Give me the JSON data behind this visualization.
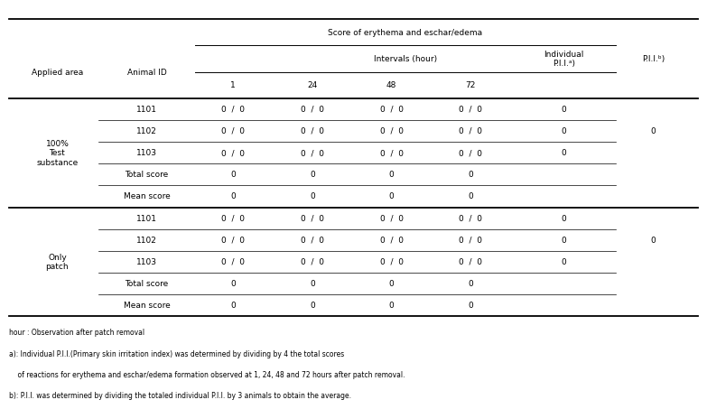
{
  "col_header_score": "Score of erythema and eschar/edema",
  "col_header_intervals": "Intervals (hour)",
  "col_applied": "Applied area",
  "col_animal": "Animal ID",
  "col_individual": "Individual\nP.I.I.ᵃ)",
  "col_pii": "P.I.I.ᵇ)",
  "col_1": "1",
  "col_24": "24",
  "col_48": "48",
  "col_72": "72",
  "group1_label": "100%\nTest\nsubstance",
  "group2_label": "Only\npatch",
  "animal_ids": [
    "1101",
    "1102",
    "1103"
  ],
  "score_value": "0  /  0",
  "individual_pii": "0",
  "pii": "0",
  "total_score_label": "Total score",
  "mean_score_label": "Mean score",
  "footnotes": [
    "hour : Observation after patch removal",
    "a): Individual P.I.I.(Primary skin irritation index) was determined by dividing by 4 the total scores",
    "    of reactions for erythema and eschar/edema formation observed at 1, 24, 48 and 72 hours after patch removal.",
    "b): P.I.I. was determined by dividing the totaled individual P.I.I. by 3 animals to obtain the average."
  ]
}
